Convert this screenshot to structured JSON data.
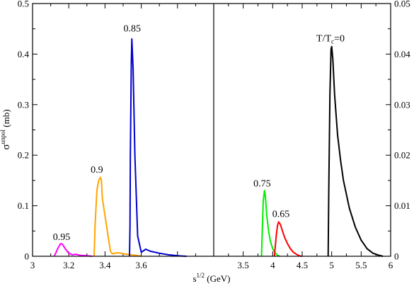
{
  "chart_data": [
    {
      "type": "line",
      "panel": "left",
      "xlim": [
        3.0,
        4.0
      ],
      "ylim": [
        0.0,
        0.5
      ],
      "xticks": [
        "3",
        "3.2",
        "3.4",
        "3.6"
      ],
      "xtick_values": [
        3.0,
        3.2,
        3.4,
        3.6
      ],
      "yticks": [
        "0",
        "0.1",
        "0.2",
        "0.3",
        "0.4",
        "0.5"
      ],
      "ytick_values": [
        0.0,
        0.1,
        0.2,
        0.3,
        0.4,
        0.5
      ],
      "ylabel_main": "σ",
      "ylabel_sup": "unpol",
      "ylabel_unit": " (mb)",
      "grid": false,
      "series": [
        {
          "label": "0.95",
          "label_at": [
            3.16,
            0.032
          ],
          "color": "#ff00ff",
          "points": [
            [
              3.12,
              0.0
            ],
            [
              3.13,
              0.008
            ],
            [
              3.14,
              0.016
            ],
            [
              3.155,
              0.025
            ],
            [
              3.165,
              0.024
            ],
            [
              3.18,
              0.015
            ],
            [
              3.2,
              0.006
            ],
            [
              3.22,
              0.003
            ],
            [
              3.24,
              0.004
            ],
            [
              3.26,
              0.002
            ],
            [
              3.3,
              0.001
            ],
            [
              3.33,
              0.0
            ]
          ]
        },
        {
          "label": "0.9",
          "label_at": [
            3.355,
            0.165
          ],
          "color": "#ffa500",
          "points": [
            [
              3.34,
              0.0
            ],
            [
              3.345,
              0.06
            ],
            [
              3.355,
              0.13
            ],
            [
              3.365,
              0.15
            ],
            [
              3.375,
              0.156
            ],
            [
              3.38,
              0.15
            ],
            [
              3.385,
              0.115
            ],
            [
              3.4,
              0.08
            ],
            [
              3.415,
              0.045
            ],
            [
              3.43,
              0.01
            ],
            [
              3.44,
              0.005
            ],
            [
              3.47,
              0.007
            ],
            [
              3.5,
              0.005
            ],
            [
              3.54,
              0.003
            ],
            [
              3.57,
              0.002
            ],
            [
              3.6,
              0.0
            ]
          ]
        },
        {
          "label": "0.85",
          "label_at": [
            3.55,
            0.445
          ],
          "color": "#0000cd",
          "points": [
            [
              3.535,
              0.0
            ],
            [
              3.538,
              0.06
            ],
            [
              3.54,
              0.2
            ],
            [
              3.545,
              0.38
            ],
            [
              3.548,
              0.43
            ],
            [
              3.555,
              0.37
            ],
            [
              3.565,
              0.2
            ],
            [
              3.58,
              0.04
            ],
            [
              3.6,
              0.008
            ],
            [
              3.625,
              0.014
            ],
            [
              3.65,
              0.01
            ],
            [
              3.7,
              0.006
            ],
            [
              3.75,
              0.003
            ],
            [
              3.8,
              0.001
            ],
            [
              3.85,
              0.0
            ]
          ]
        }
      ]
    },
    {
      "type": "line",
      "panel": "right",
      "xlim": [
        3.0,
        6.0
      ],
      "ylim": [
        0.0,
        0.05
      ],
      "xticks": [
        "3.5",
        "4",
        "4.5",
        "5",
        "5.5",
        "6"
      ],
      "xtick_values": [
        3.5,
        4.0,
        4.5,
        5.0,
        5.5,
        6.0
      ],
      "yticks": [
        "0",
        "0.01",
        "0.02",
        "0.03",
        "0.04",
        "0.05"
      ],
      "ytick_values": [
        0.0,
        0.01,
        0.02,
        0.03,
        0.04,
        0.05
      ],
      "grid": false,
      "series": [
        {
          "label": "0.75",
          "label_at": [
            3.82,
            0.0138
          ],
          "color": "#00ee00",
          "points": [
            [
              3.81,
              0.0
            ],
            [
              3.825,
              0.006
            ],
            [
              3.84,
              0.011
            ],
            [
              3.86,
              0.013
            ],
            [
              3.875,
              0.012
            ],
            [
              3.9,
              0.008
            ],
            [
              3.93,
              0.005
            ],
            [
              3.96,
              0.003
            ],
            [
              4.0,
              0.0015
            ],
            [
              4.04,
              0.0007
            ],
            [
              4.08,
              0.0002
            ],
            [
              4.12,
              0.0
            ]
          ]
        },
        {
          "label": "0.65",
          "label_at": [
            4.14,
            0.0078
          ],
          "color": "#ff0000",
          "points": [
            [
              4.03,
              0.0
            ],
            [
              4.04,
              0.0015
            ],
            [
              4.06,
              0.004
            ],
            [
              4.08,
              0.006
            ],
            [
              4.1,
              0.0068
            ],
            [
              4.13,
              0.0063
            ],
            [
              4.16,
              0.0052
            ],
            [
              4.2,
              0.0038
            ],
            [
              4.25,
              0.0025
            ],
            [
              4.3,
              0.0015
            ],
            [
              4.35,
              0.0008
            ],
            [
              4.4,
              0.0004
            ],
            [
              4.45,
              0.0001
            ],
            [
              4.5,
              0.0
            ]
          ]
        },
        {
          "label": "T/T",
          "label_sub": "c",
          "label_tail": "=0",
          "label_at": [
            4.98,
            0.0425
          ],
          "color": "#000000",
          "points": [
            [
              4.94,
              0.0
            ],
            [
              4.95,
              0.012
            ],
            [
              4.97,
              0.032
            ],
            [
              4.99,
              0.041
            ],
            [
              5.0,
              0.0415
            ],
            [
              5.02,
              0.039
            ],
            [
              5.05,
              0.032
            ],
            [
              5.1,
              0.024
            ],
            [
              5.15,
              0.019
            ],
            [
              5.2,
              0.015
            ],
            [
              5.3,
              0.0095
            ],
            [
              5.4,
              0.0058
            ],
            [
              5.5,
              0.0032
            ],
            [
              5.6,
              0.0015
            ],
            [
              5.7,
              0.0006
            ],
            [
              5.8,
              0.0002
            ],
            [
              5.87,
              0.0
            ]
          ]
        }
      ]
    }
  ],
  "xlabel_base": "s",
  "xlabel_sup": "1/2",
  "xlabel_unit": " (GeV)"
}
